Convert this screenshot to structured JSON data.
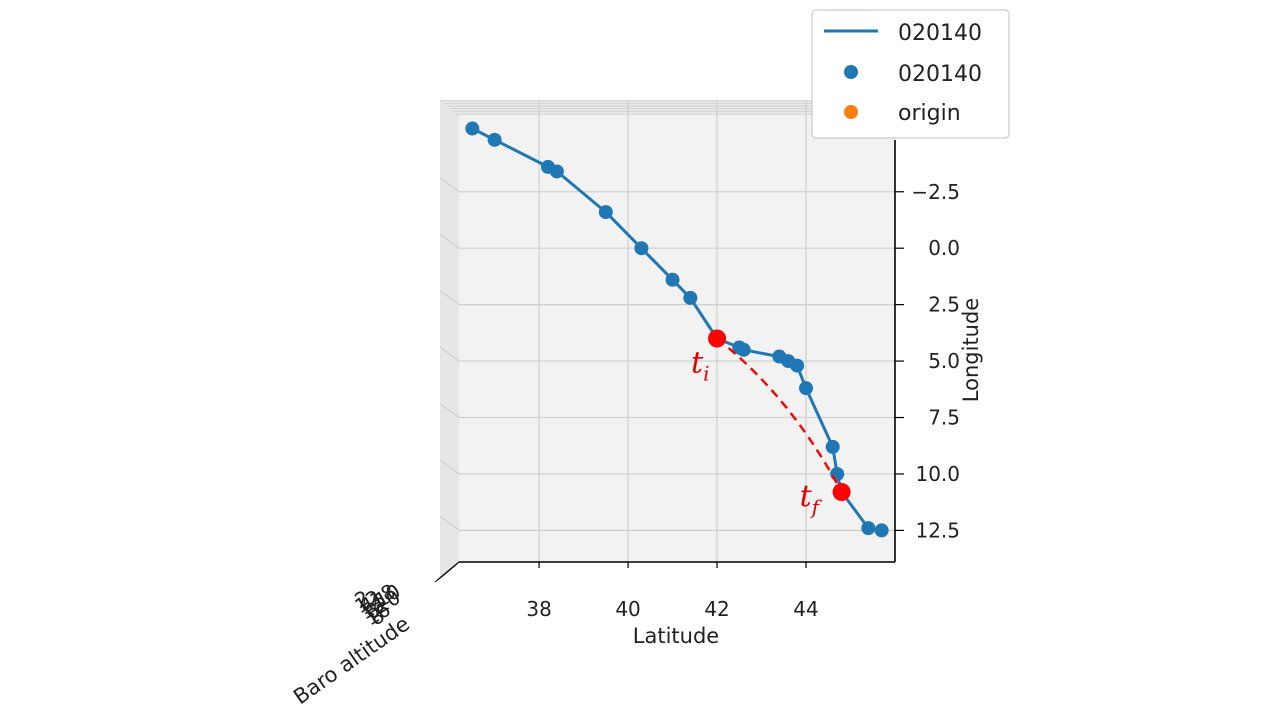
{
  "chart_data": {
    "type": "line",
    "projection": "3d",
    "xlabel": "Latitude",
    "ylabel": "Longitude",
    "zlabel": "Baro altitude",
    "x_ticks": [
      "38",
      "40",
      "42",
      "44"
    ],
    "y_ticks": [
      "−2.5",
      "0.0",
      "2.5",
      "5.0",
      "7.5",
      "10.0",
      "12.5"
    ],
    "z_ticks": [
      "2",
      "4",
      "6",
      "8",
      "10",
      "12",
      "14",
      "16",
      "18",
      "20"
    ],
    "xlim": [
      36.2,
      46.0
    ],
    "ylim": [
      -5.9,
      13.9
    ],
    "grid": true,
    "legend": {
      "placement": "top-right",
      "entries": [
        {
          "label": "020140",
          "marker": "line",
          "color": "#1f77b4"
        },
        {
          "label": "020140",
          "marker": "dot",
          "color": "#1f77b4"
        },
        {
          "label": "origin",
          "marker": "dot",
          "color": "#ff7f0e"
        }
      ]
    },
    "series": [
      {
        "name": "020140",
        "color": "#1f77b4",
        "points": [
          [
            36.5,
            -5.3
          ],
          [
            37.0,
            -4.8
          ],
          [
            38.2,
            -3.6
          ],
          [
            38.4,
            -3.4
          ],
          [
            39.5,
            -1.6
          ],
          [
            40.3,
            0.0
          ],
          [
            41.0,
            1.4
          ],
          [
            41.4,
            2.2
          ],
          [
            42.0,
            4.0
          ],
          [
            42.5,
            4.4
          ],
          [
            42.6,
            4.5
          ],
          [
            43.4,
            4.8
          ],
          [
            43.6,
            5.0
          ],
          [
            43.8,
            5.2
          ],
          [
            44.0,
            6.2
          ],
          [
            44.6,
            8.8
          ],
          [
            44.7,
            10.0
          ],
          [
            44.8,
            10.8
          ],
          [
            45.4,
            12.4
          ],
          [
            45.7,
            12.5
          ]
        ]
      }
    ],
    "highlight_points": [
      {
        "label_base": "t",
        "label_sub": "i",
        "x": 42.0,
        "y": 4.0,
        "color": "#ff0000"
      },
      {
        "label_base": "t",
        "label_sub": "f",
        "x": 44.8,
        "y": 10.8,
        "color": "#ff0000"
      }
    ],
    "dashed_connector": {
      "from": [
        42.0,
        4.0
      ],
      "to": [
        44.8,
        10.8
      ],
      "color": "#ff0000"
    }
  }
}
